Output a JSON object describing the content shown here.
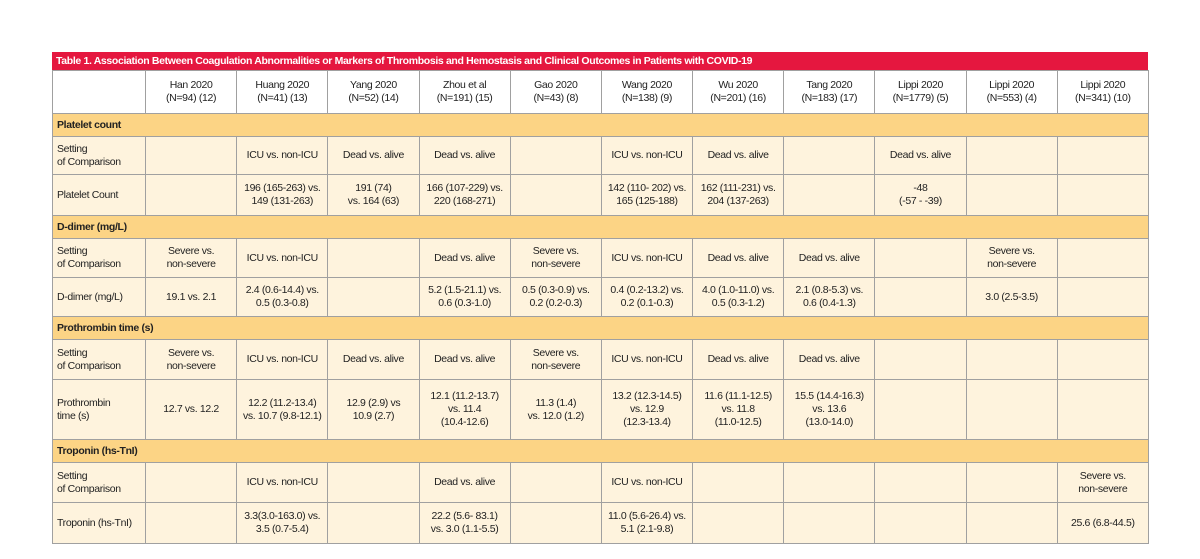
{
  "table": {
    "title": "Table 1. Association Between Coagulation Abnormalities or Markers of Thrombosis and Hemostasis and Clinical Outcomes in Patients with COVID-19",
    "columns": [
      null,
      "Han 2020\n(N=94) (12)",
      "Huang 2020\n(N=41) (13)",
      "Yang 2020\n(N=52) (14)",
      "Zhou et al\n(N=191) (15)",
      "Gao 2020\n(N=43) (8)",
      "Wang 2020\n(N=138) (9)",
      "Wu 2020\n(N=201) (16)",
      "Tang 2020\n(N=183) (17)",
      "Lippi 2020\n(N=1779) (5)",
      "Lippi 2020\n(N=553) (4)",
      "Lippi 2020\n(N=341) (10)"
    ],
    "sections": [
      {
        "title": "Platelet count",
        "rows": [
          {
            "label": "Setting\nof Comparison",
            "cells": [
              null,
              "ICU vs. non-ICU",
              "Dead vs. alive",
              "Dead vs. alive",
              null,
              "ICU vs. non-ICU",
              "Dead vs. alive",
              null,
              "Dead vs. alive",
              null,
              null
            ]
          },
          {
            "label": "Platelet Count",
            "cells": [
              null,
              "196 (165-263) vs.\n149 (131-263)",
              "191 (74)\nvs. 164 (63)",
              "166 (107-229) vs.\n220 (168-271)",
              null,
              "142 (110- 202) vs.\n165 (125-188)",
              "162 (111-231) vs.\n204 (137-263)",
              null,
              "-48\n(-57 - -39)",
              null,
              null
            ]
          }
        ]
      },
      {
        "title": "D-dimer (mg/L)",
        "rows": [
          {
            "label": "Setting\nof Comparison",
            "cells": [
              "Severe vs.\nnon-severe",
              "ICU vs. non-ICU",
              null,
              "Dead vs. alive",
              "Severe vs.\nnon-severe",
              "ICU vs. non-ICU",
              "Dead vs. alive",
              "Dead vs. alive",
              null,
              "Severe vs.\nnon-severe",
              null
            ]
          },
          {
            "label": "D-dimer (mg/L)",
            "cells": [
              "19.1 vs. 2.1",
              "2.4 (0.6-14.4) vs.\n0.5 (0.3-0.8)",
              null,
              "5.2 (1.5-21.1) vs.\n0.6 (0.3-1.0)",
              "0.5 (0.3-0.9) vs.\n0.2 (0.2-0.3)",
              "0.4 (0.2-13.2) vs.\n0.2 (0.1-0.3)",
              "4.0 (1.0-11.0) vs.\n0.5 (0.3-1.2)",
              "2.1 (0.8-5.3) vs.\n0.6 (0.4-1.3)",
              null,
              "3.0 (2.5-3.5)",
              null
            ]
          }
        ]
      },
      {
        "title": "Prothrombin time (s)",
        "rows": [
          {
            "label": "Setting\nof Comparison",
            "cells": [
              "Severe vs.\nnon-severe",
              "ICU vs. non-ICU",
              "Dead vs. alive",
              "Dead vs. alive",
              "Severe vs.\nnon-severe",
              "ICU vs. non-ICU",
              "Dead vs. alive",
              "Dead vs. alive",
              null,
              null,
              null
            ]
          },
          {
            "label": "Prothrombin\ntime (s)",
            "cells": [
              "12.7 vs. 12.2",
              "12.2 (11.2-13.4)\nvs. 10.7 (9.8-12.1)",
              "12.9 (2.9) vs\n10.9 (2.7)",
              "12.1 (11.2-13.7)\nvs. 11.4\n(10.4-12.6)",
              "11.3 (1.4)\nvs. 12.0 (1.2)",
              "13.2 (12.3-14.5)\nvs. 12.9\n(12.3-13.4)",
              "11.6 (11.1-12.5)\nvs. 11.8\n(11.0-12.5)",
              "15.5 (14.4-16.3)\nvs. 13.6\n(13.0-14.0)",
              null,
              null,
              null
            ]
          }
        ]
      },
      {
        "title": "Troponin (hs-TnI)",
        "rows": [
          {
            "label": "Setting\nof Comparison",
            "cells": [
              null,
              "ICU vs. non-ICU",
              null,
              "Dead vs. alive",
              null,
              "ICU vs. non-ICU",
              null,
              null,
              null,
              null,
              "Severe vs.\nnon-severe"
            ]
          },
          {
            "label": "Troponin (hs-TnI)",
            "cells": [
              null,
              "3.3(3.0-163.0) vs.\n3.5 (0.7-5.4)",
              null,
              "22.2 (5.6- 83.1)\nvs. 3.0 (1.1-5.5)",
              null,
              "11.0 (5.6-26.4) vs.\n5.1 (2.1-9.8)",
              null,
              null,
              null,
              null,
              "25.6 (6.8-44.5)"
            ]
          }
        ]
      }
    ]
  }
}
